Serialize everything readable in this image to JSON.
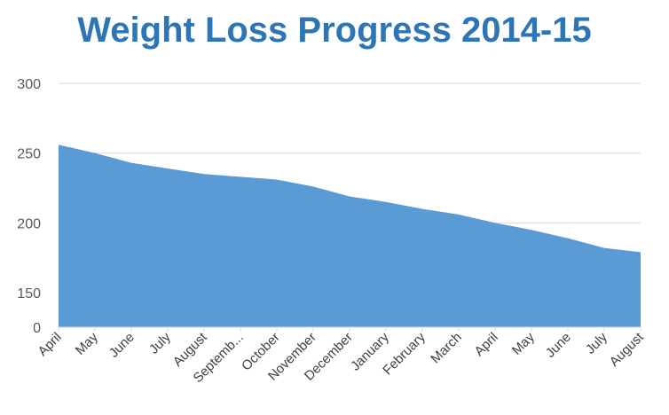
{
  "chart_data": {
    "type": "area",
    "title": "Weight Loss Progress 2014-15",
    "xlabel": "",
    "ylabel": "",
    "categories": [
      "April",
      "May",
      "June",
      "July",
      "August",
      "Septemb...",
      "October",
      "November",
      "December",
      "January",
      "February",
      "March",
      "April",
      "May",
      "June",
      "July",
      "August"
    ],
    "values": [
      256,
      250,
      243,
      239,
      235,
      233,
      231,
      226,
      219,
      215,
      210,
      206,
      200,
      195,
      189,
      182,
      179
    ],
    "yticks": [
      0,
      150,
      200,
      250,
      300
    ],
    "ylim": [
      0,
      300
    ],
    "grid": true,
    "legend": "none",
    "colors": {
      "area": "#5b9bd5",
      "title": "#2e75b6",
      "grid": "#d9d9d9"
    }
  }
}
